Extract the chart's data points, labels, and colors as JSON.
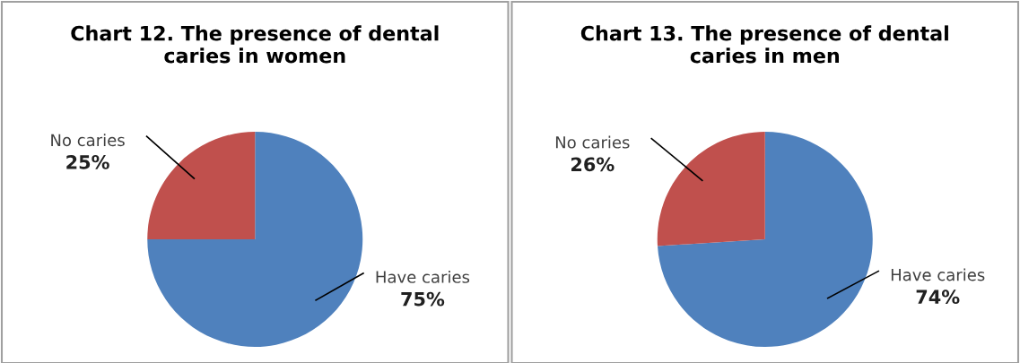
{
  "chart_data": [
    {
      "type": "pie",
      "title": "Chart 12. The presence of dental caries in women",
      "categories": [
        "Have caries",
        "No caries"
      ],
      "values": [
        75,
        25
      ],
      "value_labels": [
        "75%",
        "25%"
      ],
      "colors": [
        "#4f81bd",
        "#c0504d"
      ]
    },
    {
      "type": "pie",
      "title": "Chart 13. The presence of dental caries in men",
      "categories": [
        "Have caries",
        "No caries"
      ],
      "values": [
        74,
        26
      ],
      "value_labels": [
        "74%",
        "26%"
      ],
      "colors": [
        "#4f81bd",
        "#c0504d"
      ]
    }
  ]
}
